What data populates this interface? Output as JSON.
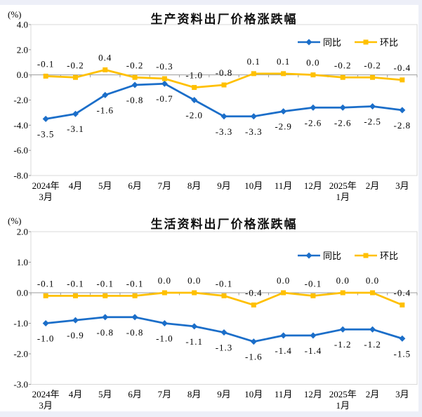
{
  "chart_data": [
    {
      "type": "line",
      "title": "生产资料出厂价格涨跌幅",
      "unit": "(%)",
      "categories": [
        "2024年\n3月",
        "4月",
        "5月",
        "6月",
        "7月",
        "8月",
        "9月",
        "10月",
        "11月",
        "12月",
        "2025年\n1月",
        "2月",
        "3月"
      ],
      "series": [
        {
          "name": "同比",
          "color": "#1b6ec9",
          "marker": "diamond",
          "label_position": "below",
          "values": [
            -3.5,
            -3.1,
            -1.6,
            -0.8,
            -0.7,
            -2.0,
            -3.3,
            -3.3,
            -2.9,
            -2.6,
            -2.6,
            -2.5,
            -2.8
          ]
        },
        {
          "name": "环比",
          "color": "#ffc000",
          "marker": "square",
          "label_position": "above",
          "values": [
            -0.1,
            -0.2,
            0.4,
            -0.2,
            -0.3,
            -1.0,
            -0.8,
            0.1,
            0.1,
            0.0,
            -0.2,
            -0.2,
            -0.4
          ]
        }
      ],
      "ylim": [
        -8,
        4
      ],
      "ytick_step": 2,
      "grid": false,
      "data_labels": true,
      "legend_position": "top-right"
    },
    {
      "type": "line",
      "title": "生活资料出厂价格涨跌幅",
      "unit": "(%)",
      "categories": [
        "2024年\n3月",
        "4月",
        "5月",
        "6月",
        "7月",
        "8月",
        "9月",
        "10月",
        "11月",
        "12月",
        "2025年\n1月",
        "2月",
        "3月"
      ],
      "series": [
        {
          "name": "同比",
          "color": "#1b6ec9",
          "marker": "diamond",
          "label_position": "below",
          "values": [
            -1.0,
            -0.9,
            -0.8,
            -0.8,
            -1.0,
            -1.1,
            -1.3,
            -1.6,
            -1.4,
            -1.4,
            -1.2,
            -1.2,
            -1.5
          ]
        },
        {
          "name": "环比",
          "color": "#ffc000",
          "marker": "square",
          "label_position": "above",
          "values": [
            -0.1,
            -0.1,
            -0.1,
            -0.1,
            0.0,
            0.0,
            -0.1,
            -0.4,
            0.0,
            -0.1,
            0.0,
            0.0,
            -0.4
          ]
        }
      ],
      "ylim": [
        -3,
        2
      ],
      "ytick_step": 1,
      "grid": false,
      "data_labels": true,
      "legend_position": "top-right"
    }
  ],
  "axis_line_color": "#9b9b9b",
  "plot_border_color": "#d9d9d9",
  "edge_color": "#edeff8"
}
